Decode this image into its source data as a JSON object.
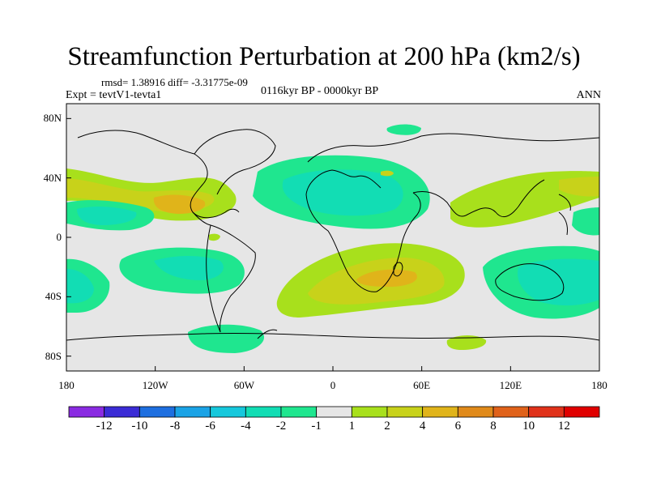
{
  "title": "Streamfunction Perturbation at 200 hPa (km2/s)",
  "stats": "rmsd= 1.38916 diff= -3.31775e-09",
  "experiment": "Expt = tevtV1-tevta1",
  "period": "0116kyr BP - 0000kyr BP",
  "season": "ANN",
  "map": {
    "lon_ticks": [
      "180",
      "120W",
      "60W",
      "0",
      "60E",
      "120E",
      "180"
    ],
    "lat_ticks": [
      "80N",
      "40N",
      "0",
      "40S",
      "80S"
    ],
    "lon_values": [
      -180,
      -120,
      -60,
      0,
      60,
      120,
      180
    ],
    "lat_values": [
      80,
      40,
      0,
      -40,
      -80
    ],
    "lon_range": [
      -180,
      180
    ],
    "lat_range": [
      -90,
      90
    ]
  },
  "colorbar": {
    "labels": [
      "-12",
      "-10",
      "-8",
      "-6",
      "-4",
      "-2",
      "-1",
      "1",
      "2",
      "4",
      "6",
      "8",
      "10",
      "12"
    ],
    "colors": [
      "#8a2be2",
      "#3b2cd6",
      "#1e6fe0",
      "#1aa3e6",
      "#16c8dc",
      "#12ddb4",
      "#1fe68f",
      "#e6e6e6",
      "#a8e01c",
      "#c8d21a",
      "#e0b41a",
      "#e08a1a",
      "#e0621a",
      "#e0321a",
      "#e00000"
    ]
  },
  "colors": {
    "background": "#e6e6e6",
    "coast": "#000000"
  }
}
